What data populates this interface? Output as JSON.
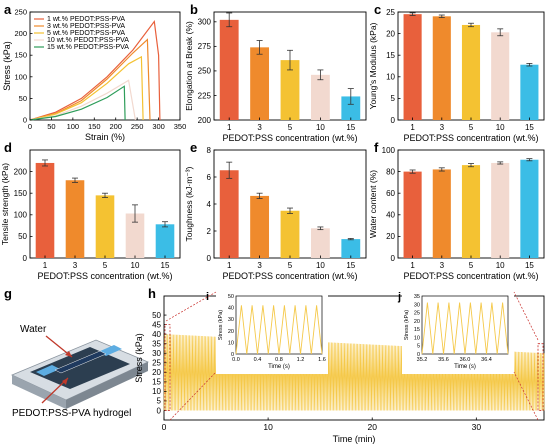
{
  "colors": {
    "c1": "#e8603c",
    "c3": "#ef8a2c",
    "c5": "#f4c232",
    "c10": "#f2d9cf",
    "c15": "#3bbde6",
    "c15_stress_strain": "#2e9d5a",
    "cyclic": "#f5c94a",
    "zoom_border": "#c9302c"
  },
  "chart_data": [
    {
      "panel": "a",
      "type": "line",
      "xlabel": "Strain (%)",
      "ylabel": "Stress (kPa)",
      "xlim": [
        0,
        350
      ],
      "ylim": [
        0,
        250
      ],
      "xticks": [
        0,
        50,
        100,
        150,
        200,
        250,
        300,
        350
      ],
      "yticks": [
        0,
        50,
        100,
        150,
        200,
        250
      ],
      "legend_position": "top-left",
      "series": [
        {
          "name": "1 wt.% PEDOT:PSS-PVA",
          "color_key": "c1",
          "x": [
            0,
            60,
            120,
            180,
            240,
            290,
            300,
            303
          ],
          "y": [
            0,
            18,
            50,
            100,
            162,
            228,
            150,
            0
          ]
        },
        {
          "name": "3 wt.% PEDOT:PSS-PVA",
          "color_key": "c3",
          "x": [
            0,
            60,
            120,
            180,
            240,
            274,
            280
          ],
          "y": [
            0,
            15,
            45,
            95,
            155,
            186,
            0
          ]
        },
        {
          "name": "5 wt.% PEDOT:PSS-PVA",
          "color_key": "c5",
          "x": [
            0,
            60,
            120,
            180,
            230,
            260,
            264
          ],
          "y": [
            0,
            14,
            40,
            85,
            130,
            146,
            0
          ]
        },
        {
          "name": "10 wt.% PEDOT:PSS-PVA",
          "color_key": "c10",
          "x": [
            0,
            60,
            120,
            180,
            230,
            246
          ],
          "y": [
            0,
            10,
            32,
            62,
            92,
            0
          ]
        },
        {
          "name": "15 wt.% PEDOT:PSS-PVA",
          "color_key": "c15_stress_strain",
          "x": [
            0,
            60,
            120,
            180,
            220,
            222
          ],
          "y": [
            0,
            8,
            25,
            52,
            78,
            0
          ]
        }
      ]
    },
    {
      "panel": "b",
      "type": "bar",
      "xlabel": "PEDOT:PSS concentration (wt.%)",
      "ylabel": "Elongation at Break (%)",
      "categories": [
        "1",
        "3",
        "5",
        "10",
        "15"
      ],
      "values": [
        302,
        274,
        261,
        246,
        224
      ],
      "errors": [
        7,
        7,
        10,
        5,
        8
      ],
      "ylim": [
        200,
        310
      ],
      "yticks": [
        200,
        225,
        250,
        275,
        300
      ]
    },
    {
      "panel": "c",
      "type": "bar",
      "xlabel": "PEDOT:PSS concentration (wt.%)",
      "ylabel": "Young's Modulus (kPa)",
      "categories": [
        "1",
        "3",
        "5",
        "10",
        "15"
      ],
      "values": [
        24.5,
        24.0,
        22.0,
        20.3,
        12.8
      ],
      "errors": [
        0.3,
        0.3,
        0.4,
        0.8,
        0.3
      ],
      "ylim": [
        0,
        25
      ],
      "yticks": [
        0,
        5,
        10,
        15,
        20,
        25
      ]
    },
    {
      "panel": "d",
      "type": "bar",
      "xlabel": "PEDOT:PSS concentration (wt.%)",
      "ylabel": "Tensile strength (kPa)",
      "categories": [
        "1",
        "3",
        "5",
        "10",
        "15"
      ],
      "values": [
        220,
        180,
        145,
        103,
        78
      ],
      "errors": [
        7,
        5,
        5,
        20,
        6
      ],
      "ylim": [
        0,
        250
      ],
      "yticks": [
        0,
        50,
        100,
        150,
        200
      ]
    },
    {
      "panel": "e",
      "type": "bar",
      "xlabel": "PEDOT:PSS concentration (wt.%)",
      "ylabel": "Toughness (kJ·m⁻³)",
      "categories": [
        "1",
        "3",
        "5",
        "10",
        "15"
      ],
      "values": [
        6.5,
        4.6,
        3.5,
        2.2,
        1.4
      ],
      "errors": [
        0.6,
        0.2,
        0.2,
        0.1,
        0.05
      ],
      "ylim": [
        0,
        8
      ],
      "yticks": [
        0,
        2,
        4,
        6,
        8
      ]
    },
    {
      "panel": "f",
      "type": "bar",
      "xlabel": "PEDOT:PSS concentration (wt.%)",
      "ylabel": "Water content (%)",
      "categories": [
        "1",
        "3",
        "5",
        "10",
        "15"
      ],
      "values": [
        80,
        82,
        86,
        88,
        91
      ],
      "errors": [
        1.5,
        1.5,
        1.5,
        1.0,
        1.0
      ],
      "ylim": [
        0,
        100
      ],
      "yticks": [
        0,
        20,
        40,
        60,
        80,
        100
      ]
    },
    {
      "panel": "h",
      "type": "line",
      "xlabel": "Time (min)",
      "ylabel": "Stress (kPa)",
      "xlim": [
        0,
        36.5
      ],
      "ylim": [
        -5,
        60
      ],
      "xticks": [
        0,
        10,
        20,
        30
      ],
      "yticks": [
        0,
        5,
        10,
        15,
        20,
        25,
        30,
        35,
        40,
        45,
        50
      ],
      "envelope_start_peak": 40,
      "envelope_end_peak": 30
    },
    {
      "panel": "i",
      "type": "line",
      "xlabel": "Time (s)",
      "ylabel": "Stress (kPa)",
      "xlim": [
        0,
        1.6
      ],
      "ylim": [
        0,
        50
      ],
      "xticks": [
        "0.0",
        "0.4",
        "0.8",
        "1.2",
        "1.6"
      ],
      "yticks": [
        0,
        10,
        20,
        30,
        40,
        50
      ],
      "peak": 42,
      "cycles": 8
    },
    {
      "panel": "j",
      "type": "line",
      "xlabel": "Time (s)",
      "ylabel": "Stress (kPa)",
      "xlim": [
        35.2,
        36.8
      ],
      "ylim": [
        0,
        35
      ],
      "xticks": [
        "35.2",
        "35.6",
        "36.0",
        "36.4"
      ],
      "yticks": [
        0,
        5,
        10,
        15,
        20,
        25,
        30,
        35
      ],
      "peak": 31,
      "cycles": 8
    }
  ],
  "labels": {
    "a": "a",
    "b": "b",
    "c": "c",
    "d": "d",
    "e": "e",
    "f": "f",
    "g": "g",
    "h": "h",
    "i": "i",
    "j": "j"
  },
  "device": {
    "water_label": "Water",
    "hydrogel_label": "PEDOT:PSS-PVA hydrogel"
  }
}
